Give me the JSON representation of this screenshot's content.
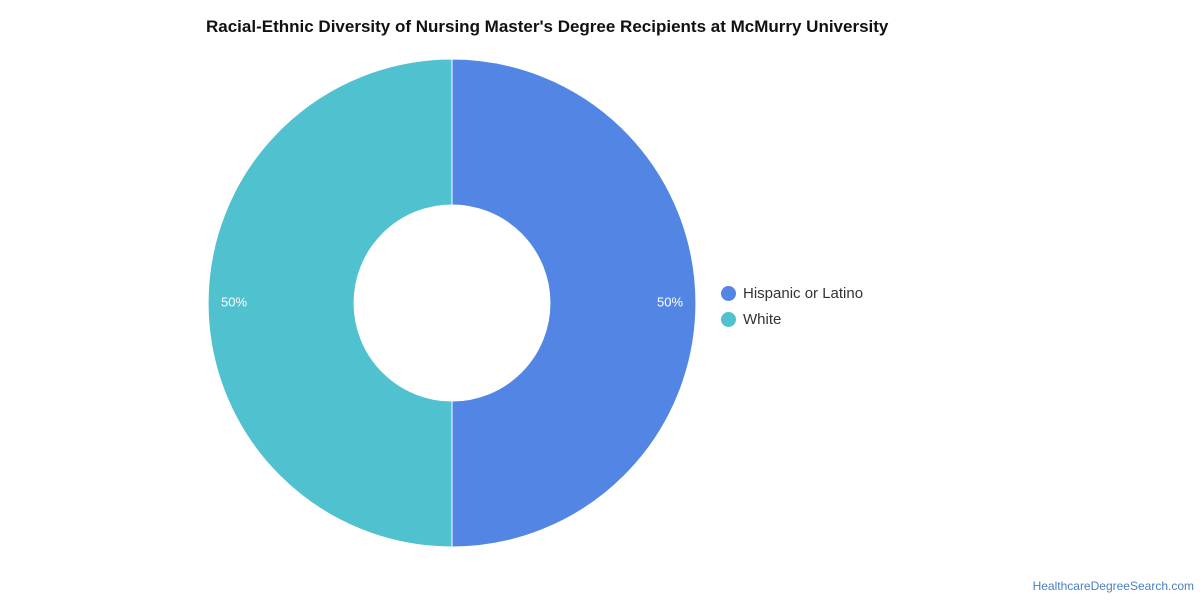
{
  "chart_data": {
    "type": "pie",
    "title": "Racial-Ethnic Diversity of Nursing Master's Degree Recipients at McMurry University",
    "style": "donut",
    "slices": [
      {
        "name": "Hispanic or Latino",
        "value": 50,
        "label": "50%",
        "color": "#5386e4"
      },
      {
        "name": "White",
        "value": 50,
        "label": "50%",
        "color": "#4fc1cf"
      }
    ],
    "legend_position": "right"
  },
  "footer": {
    "source": "HealthcareDegreeSearch.com"
  }
}
